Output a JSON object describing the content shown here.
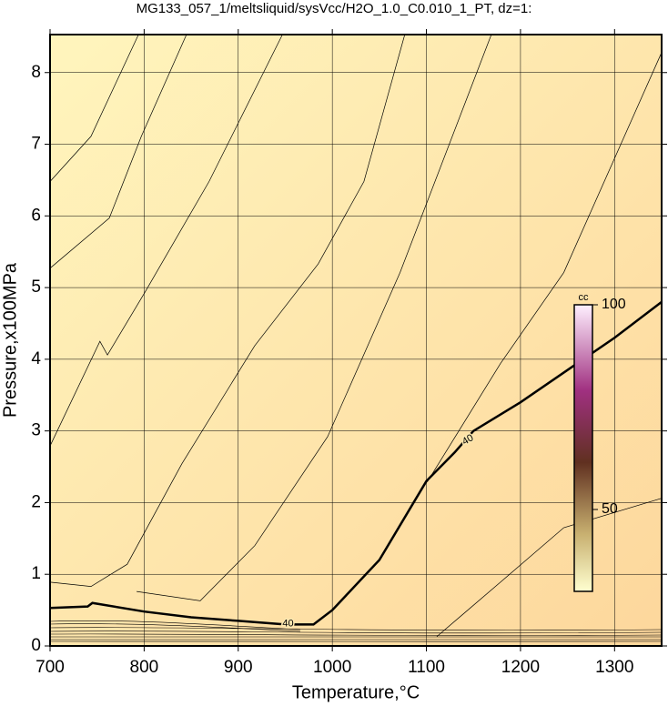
{
  "chart_data": {
    "type": "contour",
    "title": "MG133_057_1/meltsliquid/sysVcc/H2O_1.0_C0.010_1_PT, dz=1:",
    "xlabel": "Temperature,°C",
    "ylabel": "Pressure,x100MPa",
    "xlim": [
      700,
      1350
    ],
    "ylim": [
      0,
      8.53
    ],
    "xticks": [
      700,
      800,
      900,
      1000,
      1100,
      1200,
      1300
    ],
    "yticks": [
      0,
      1,
      2,
      3,
      4,
      5,
      6,
      7,
      8
    ],
    "grid": true,
    "lines": [
      {
        "label": "40",
        "x": [
          700,
          740,
          745,
          800,
          850,
          900,
          950,
          980,
          1000,
          1050,
          1100,
          1130,
          1150,
          1200,
          1250,
          1300,
          1350
        ],
        "y": [
          0.53,
          0.55,
          0.6,
          0.48,
          0.4,
          0.35,
          0.3,
          0.3,
          0.5,
          1.2,
          2.3,
          2.7,
          3.0,
          3.4,
          3.85,
          4.3,
          4.8
        ]
      },
      {
        "x": [
          700,
          743.5,
          794
        ],
        "y": [
          6.48,
          7.11,
          8.53
        ]
      },
      {
        "x": [
          700,
          763,
          797,
          845
        ],
        "y": [
          5.27,
          5.97,
          7.11,
          8.53
        ]
      },
      {
        "x": [
          700,
          753,
          761,
          801.5,
          869,
          947
        ],
        "y": [
          2.79,
          4.25,
          4.06,
          4.95,
          6.48,
          8.53
        ]
      },
      {
        "x": [
          700,
          743.5,
          782,
          840,
          917.6,
          985,
          1033.6,
          1077
        ],
        "y": [
          0.89,
          0.83,
          1.14,
          2.54,
          4.19,
          5.33,
          6.48,
          8.53
        ]
      },
      {
        "x": [
          792,
          859.6,
          917.6,
          995,
          1072,
          1169
        ],
        "y": [
          0.76,
          0.63,
          1.4,
          2.92,
          5.21,
          8.53
        ]
      },
      {
        "x": [
          1111,
          1178.7,
          1246,
          1350
        ],
        "y": [
          0.13,
          0.89,
          1.65,
          2.06
        ]
      },
      {
        "x": [
          1101,
          1178.7,
          1246,
          1350
        ],
        "y": [
          2.29,
          3.94,
          5.21,
          8.28
        ]
      }
    ],
    "colorbar": {
      "title": "cc",
      "lim": [
        30,
        100
      ],
      "ticks": [
        50,
        100
      ]
    }
  }
}
